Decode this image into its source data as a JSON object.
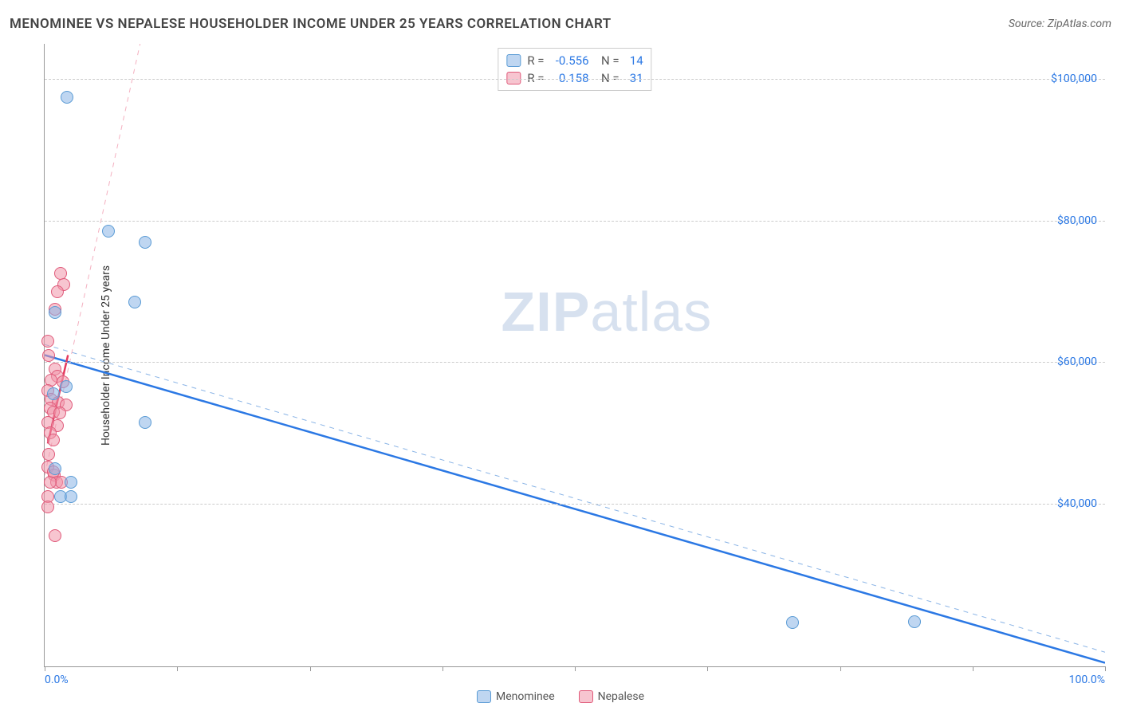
{
  "title": "MENOMINEE VS NEPALESE HOUSEHOLDER INCOME UNDER 25 YEARS CORRELATION CHART",
  "source": "Source: ZipAtlas.com",
  "watermark": {
    "bold": "ZIP",
    "light": "atlas"
  },
  "chart": {
    "type": "scatter",
    "background_color": "#ffffff",
    "grid_color": "#cccccc",
    "axis_color": "#999999",
    "tick_color": "#2b78e4",
    "ylabel": "Householder Income Under 25 years",
    "xlim": [
      0,
      100
    ],
    "ylim": [
      17000,
      105000
    ],
    "xticks": [
      {
        "pos": 0,
        "label": "0.0%"
      },
      {
        "pos": 12.5,
        "label": ""
      },
      {
        "pos": 25,
        "label": ""
      },
      {
        "pos": 37.5,
        "label": ""
      },
      {
        "pos": 50,
        "label": ""
      },
      {
        "pos": 62.5,
        "label": ""
      },
      {
        "pos": 75,
        "label": ""
      },
      {
        "pos": 87.5,
        "label": ""
      },
      {
        "pos": 100,
        "label": "100.0%"
      }
    ],
    "yticks": [
      40000,
      60000,
      80000,
      100000
    ],
    "ytick_labels": [
      "$40,000",
      "$60,000",
      "$80,000",
      "$100,000"
    ],
    "marker_radius": 8,
    "series": {
      "menominee": {
        "label": "Menominee",
        "color_fill": "rgba(138,180,230,0.55)",
        "color_stroke": "#5a9bd5",
        "trend": {
          "style": "solid",
          "width": 2.5,
          "color": "#2b78e4",
          "x1": 0,
          "y1": 61000,
          "x2": 100,
          "y2": 17500
        },
        "trend_dash": {
          "style": "dash",
          "width": 1,
          "color": "#8ab4e6",
          "x1": 0,
          "y1": 62500,
          "x2": 100,
          "y2": 19000
        },
        "R": "-0.556",
        "N": "14",
        "points": [
          {
            "x": 2.1,
            "y": 97500
          },
          {
            "x": 6.0,
            "y": 78500
          },
          {
            "x": 9.5,
            "y": 77000
          },
          {
            "x": 8.5,
            "y": 68500
          },
          {
            "x": 1.0,
            "y": 67000
          },
          {
            "x": 2.0,
            "y": 56500
          },
          {
            "x": 0.8,
            "y": 55500
          },
          {
            "x": 9.5,
            "y": 51500
          },
          {
            "x": 1.0,
            "y": 45000
          },
          {
            "x": 2.5,
            "y": 43000
          },
          {
            "x": 1.5,
            "y": 41000
          },
          {
            "x": 2.5,
            "y": 41000
          },
          {
            "x": 70.5,
            "y": 23200
          },
          {
            "x": 82.0,
            "y": 23300
          }
        ]
      },
      "nepalese": {
        "label": "Nepalese",
        "color_fill": "rgba(240,150,170,0.55)",
        "color_stroke": "#e05a7a",
        "trend": {
          "style": "solid",
          "width": 2.5,
          "color": "#e5395d",
          "x1": 0.3,
          "y1": 48500,
          "x2": 2.2,
          "y2": 61000
        },
        "trend_dash": {
          "style": "dash",
          "width": 1,
          "color": "#f4b0c0",
          "x1": 0,
          "y1": 44000,
          "x2": 9,
          "y2": 105000
        },
        "R": "0.158",
        "N": "31",
        "points": [
          {
            "x": 1.5,
            "y": 72500
          },
          {
            "x": 1.8,
            "y": 71000
          },
          {
            "x": 1.2,
            "y": 70000
          },
          {
            "x": 1.0,
            "y": 67500
          },
          {
            "x": 0.3,
            "y": 63000
          },
          {
            "x": 0.4,
            "y": 61000
          },
          {
            "x": 1.0,
            "y": 59000
          },
          {
            "x": 1.2,
            "y": 58000
          },
          {
            "x": 0.6,
            "y": 57500
          },
          {
            "x": 1.7,
            "y": 57200
          },
          {
            "x": 0.3,
            "y": 56000
          },
          {
            "x": 0.6,
            "y": 54700
          },
          {
            "x": 1.3,
            "y": 54300
          },
          {
            "x": 2.0,
            "y": 54000
          },
          {
            "x": 0.5,
            "y": 53500
          },
          {
            "x": 0.8,
            "y": 53000
          },
          {
            "x": 1.4,
            "y": 52800
          },
          {
            "x": 0.3,
            "y": 51500
          },
          {
            "x": 1.2,
            "y": 51000
          },
          {
            "x": 0.5,
            "y": 50000
          },
          {
            "x": 0.8,
            "y": 49000
          },
          {
            "x": 0.4,
            "y": 47000
          },
          {
            "x": 0.3,
            "y": 45200
          },
          {
            "x": 0.9,
            "y": 44000
          },
          {
            "x": 1.1,
            "y": 43000
          },
          {
            "x": 1.6,
            "y": 43000
          },
          {
            "x": 0.5,
            "y": 43000
          },
          {
            "x": 0.3,
            "y": 41000
          },
          {
            "x": 0.3,
            "y": 39500
          },
          {
            "x": 1.0,
            "y": 35500
          },
          {
            "x": 0.8,
            "y": 44500
          }
        ]
      }
    }
  }
}
